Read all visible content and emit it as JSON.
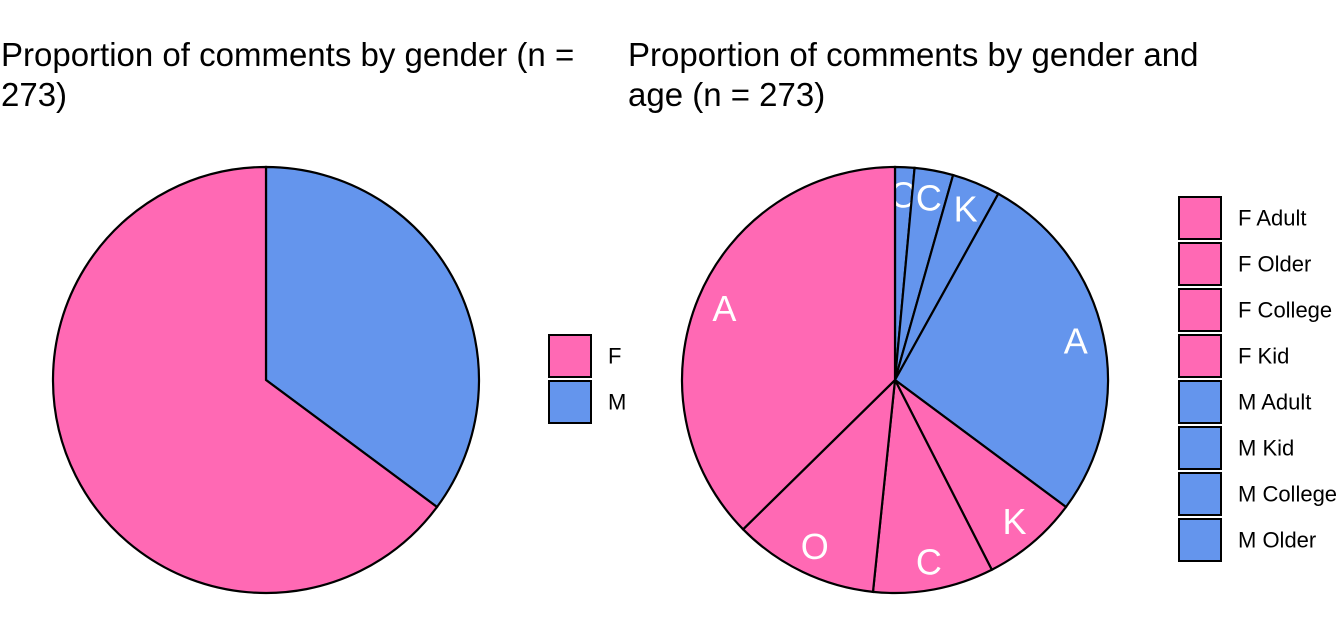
{
  "colors": {
    "F": "#FF69B4",
    "M": "#6495ED",
    "stroke": "#000000",
    "label": "#FFFFFF"
  },
  "chart_data": [
    {
      "type": "pie",
      "title": "Proportion of comments by gender (n = 273)",
      "slices": [
        {
          "name": "M",
          "group": "M",
          "value": 96
        },
        {
          "name": "F",
          "group": "F",
          "value": 177
        }
      ],
      "legend": {
        "placement": "right",
        "entries": [
          {
            "label": "F",
            "group": "F"
          },
          {
            "label": "M",
            "group": "M"
          }
        ]
      }
    },
    {
      "type": "pie",
      "title": "Proportion of comments by gender and age (n = 273)",
      "slices": [
        {
          "name": "M Older",
          "group": "M",
          "value": 4,
          "label": "O"
        },
        {
          "name": "M College",
          "group": "M",
          "value": 8,
          "label": "C"
        },
        {
          "name": "M Kid",
          "group": "M",
          "value": 10,
          "label": "K"
        },
        {
          "name": "M Adult",
          "group": "M",
          "value": 74,
          "label": "A"
        },
        {
          "name": "F Kid",
          "group": "F",
          "value": 20,
          "label": "K"
        },
        {
          "name": "F College",
          "group": "F",
          "value": 25,
          "label": "C"
        },
        {
          "name": "F Older",
          "group": "F",
          "value": 30,
          "label": "O"
        },
        {
          "name": "F Adult",
          "group": "F",
          "value": 102,
          "label": "A"
        }
      ],
      "legend": {
        "placement": "right",
        "entries": [
          {
            "label": "F Adult",
            "group": "F"
          },
          {
            "label": "F Older",
            "group": "F"
          },
          {
            "label": "F College",
            "group": "F"
          },
          {
            "label": "F Kid",
            "group": "F"
          },
          {
            "label": "M Adult",
            "group": "M"
          },
          {
            "label": "M Kid",
            "group": "M"
          },
          {
            "label": "M College",
            "group": "M"
          },
          {
            "label": "M Older",
            "group": "M"
          }
        ]
      }
    }
  ]
}
